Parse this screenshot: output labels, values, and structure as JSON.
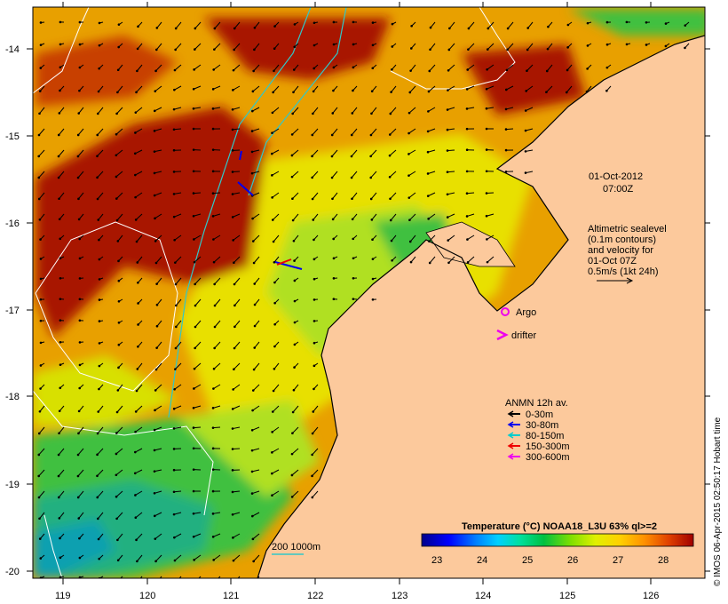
{
  "map": {
    "lat_ticks": [
      "-14",
      "-15",
      "-16",
      "-17",
      "-18",
      "-19",
      "-20"
    ],
    "lon_ticks": [
      "119",
      "120",
      "121",
      "122",
      "123",
      "124",
      "125",
      "126"
    ],
    "datetime_line1": "01-Oct-2012",
    "datetime_line2": "07:00Z",
    "altimetry_lines": [
      "Altimetric sealevel",
      "(0.1m contours)",
      "and velocity for",
      "01-Oct 07Z",
      "0.5m/s (1kt 24h)"
    ],
    "argo_label": "Argo",
    "drifter_label": "drifter",
    "anmn_title": "ANMN 12h av.",
    "anmn_items": [
      {
        "label": "0-30m",
        "color": "#000000"
      },
      {
        "label": "30-80m",
        "color": "#0000ee"
      },
      {
        "label": "80-150m",
        "color": "#00cccc"
      },
      {
        "label": "150-300m",
        "color": "#ee0000"
      },
      {
        "label": "300-600m",
        "color": "#ee00ee"
      }
    ],
    "depth_label": "200  1000m",
    "colorbar": {
      "title": "Temperature (°C) NOAA18_L3U 63% ql>=2",
      "ticks": [
        "23",
        "24",
        "25",
        "26",
        "27",
        "28"
      ],
      "colors": [
        "#00008b",
        "#0000ff",
        "#0080ff",
        "#00d0ff",
        "#00e0a0",
        "#00c040",
        "#80e000",
        "#e0f000",
        "#ffd000",
        "#ff9000",
        "#e04000",
        "#a00000"
      ]
    },
    "credit": "© IMOS 06-Apr-2015 02:50:17 Hobart time",
    "colors": {
      "land": "#fcc99c",
      "hot": "#a31a00",
      "warm": "#e89000",
      "yellow": "#f0d800",
      "lime": "#b8e000",
      "green": "#30c040",
      "teal": "#20b090"
    }
  }
}
